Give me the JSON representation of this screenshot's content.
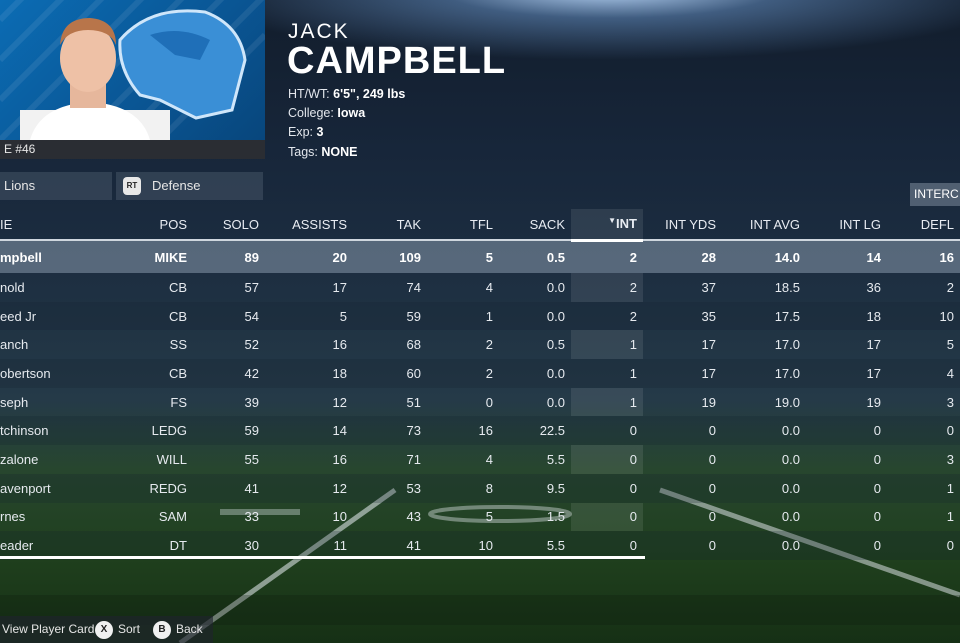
{
  "player": {
    "first_name": "JACK",
    "last_name": "CAMPBELL",
    "jersey": "E #46",
    "htwt_label": "HT/WT:",
    "htwt_value": "6'5\", 249 lbs",
    "college_label": "College:",
    "college_value": "Iowa",
    "exp_label": "Exp:",
    "exp_value": "3",
    "tags_label": "Tags:",
    "tags_value": "NONE"
  },
  "tabs": {
    "team": "Lions",
    "category_icon": "RT",
    "category": "Defense",
    "next_section": "INTERC"
  },
  "table": {
    "sorted_column": "INT",
    "columns": [
      "IE",
      "POS",
      "SOLO",
      "ASSISTS",
      "TAK",
      "TFL",
      "SACK",
      "INT",
      "INT YDS",
      "INT AVG",
      "INT LG",
      "DEFL"
    ],
    "rows": [
      [
        "mpbell",
        "MIKE",
        "89",
        "20",
        "109",
        "5",
        "0.5",
        "2",
        "28",
        "14.0",
        "14",
        "16"
      ],
      [
        "nold",
        "CB",
        "57",
        "17",
        "74",
        "4",
        "0.0",
        "2",
        "37",
        "18.5",
        "36",
        "2"
      ],
      [
        "eed Jr",
        "CB",
        "54",
        "5",
        "59",
        "1",
        "0.0",
        "2",
        "35",
        "17.5",
        "18",
        "10"
      ],
      [
        "anch",
        "SS",
        "52",
        "16",
        "68",
        "2",
        "0.5",
        "1",
        "17",
        "17.0",
        "17",
        "5"
      ],
      [
        "obertson",
        "CB",
        "42",
        "18",
        "60",
        "2",
        "0.0",
        "1",
        "17",
        "17.0",
        "17",
        "4"
      ],
      [
        "seph",
        "FS",
        "39",
        "12",
        "51",
        "0",
        "0.0",
        "1",
        "19",
        "19.0",
        "19",
        "3"
      ],
      [
        "tchinson",
        "LEDG",
        "59",
        "14",
        "73",
        "16",
        "22.5",
        "0",
        "0",
        "0.0",
        "0",
        "0"
      ],
      [
        "zalone",
        "WILL",
        "55",
        "16",
        "71",
        "4",
        "5.5",
        "0",
        "0",
        "0.0",
        "0",
        "3"
      ],
      [
        "avenport",
        "REDG",
        "41",
        "12",
        "53",
        "8",
        "9.5",
        "0",
        "0",
        "0.0",
        "0",
        "1"
      ],
      [
        "rnes",
        "SAM",
        "33",
        "10",
        "43",
        "5",
        "1.5",
        "0",
        "0",
        "0.0",
        "0",
        "1"
      ],
      [
        "eader",
        "DT",
        "30",
        "11",
        "41",
        "10",
        "5.5",
        "0",
        "0",
        "0.0",
        "0",
        "0"
      ]
    ]
  },
  "footer": {
    "view_label": "View Player Card",
    "sort_icon": "X",
    "sort_label": "Sort",
    "back_icon": "B",
    "back_label": "Back"
  },
  "colors": {
    "team_blue": "#0a6bb3",
    "header_bg": "#17263a",
    "selected_row": "#8f9fb4"
  }
}
